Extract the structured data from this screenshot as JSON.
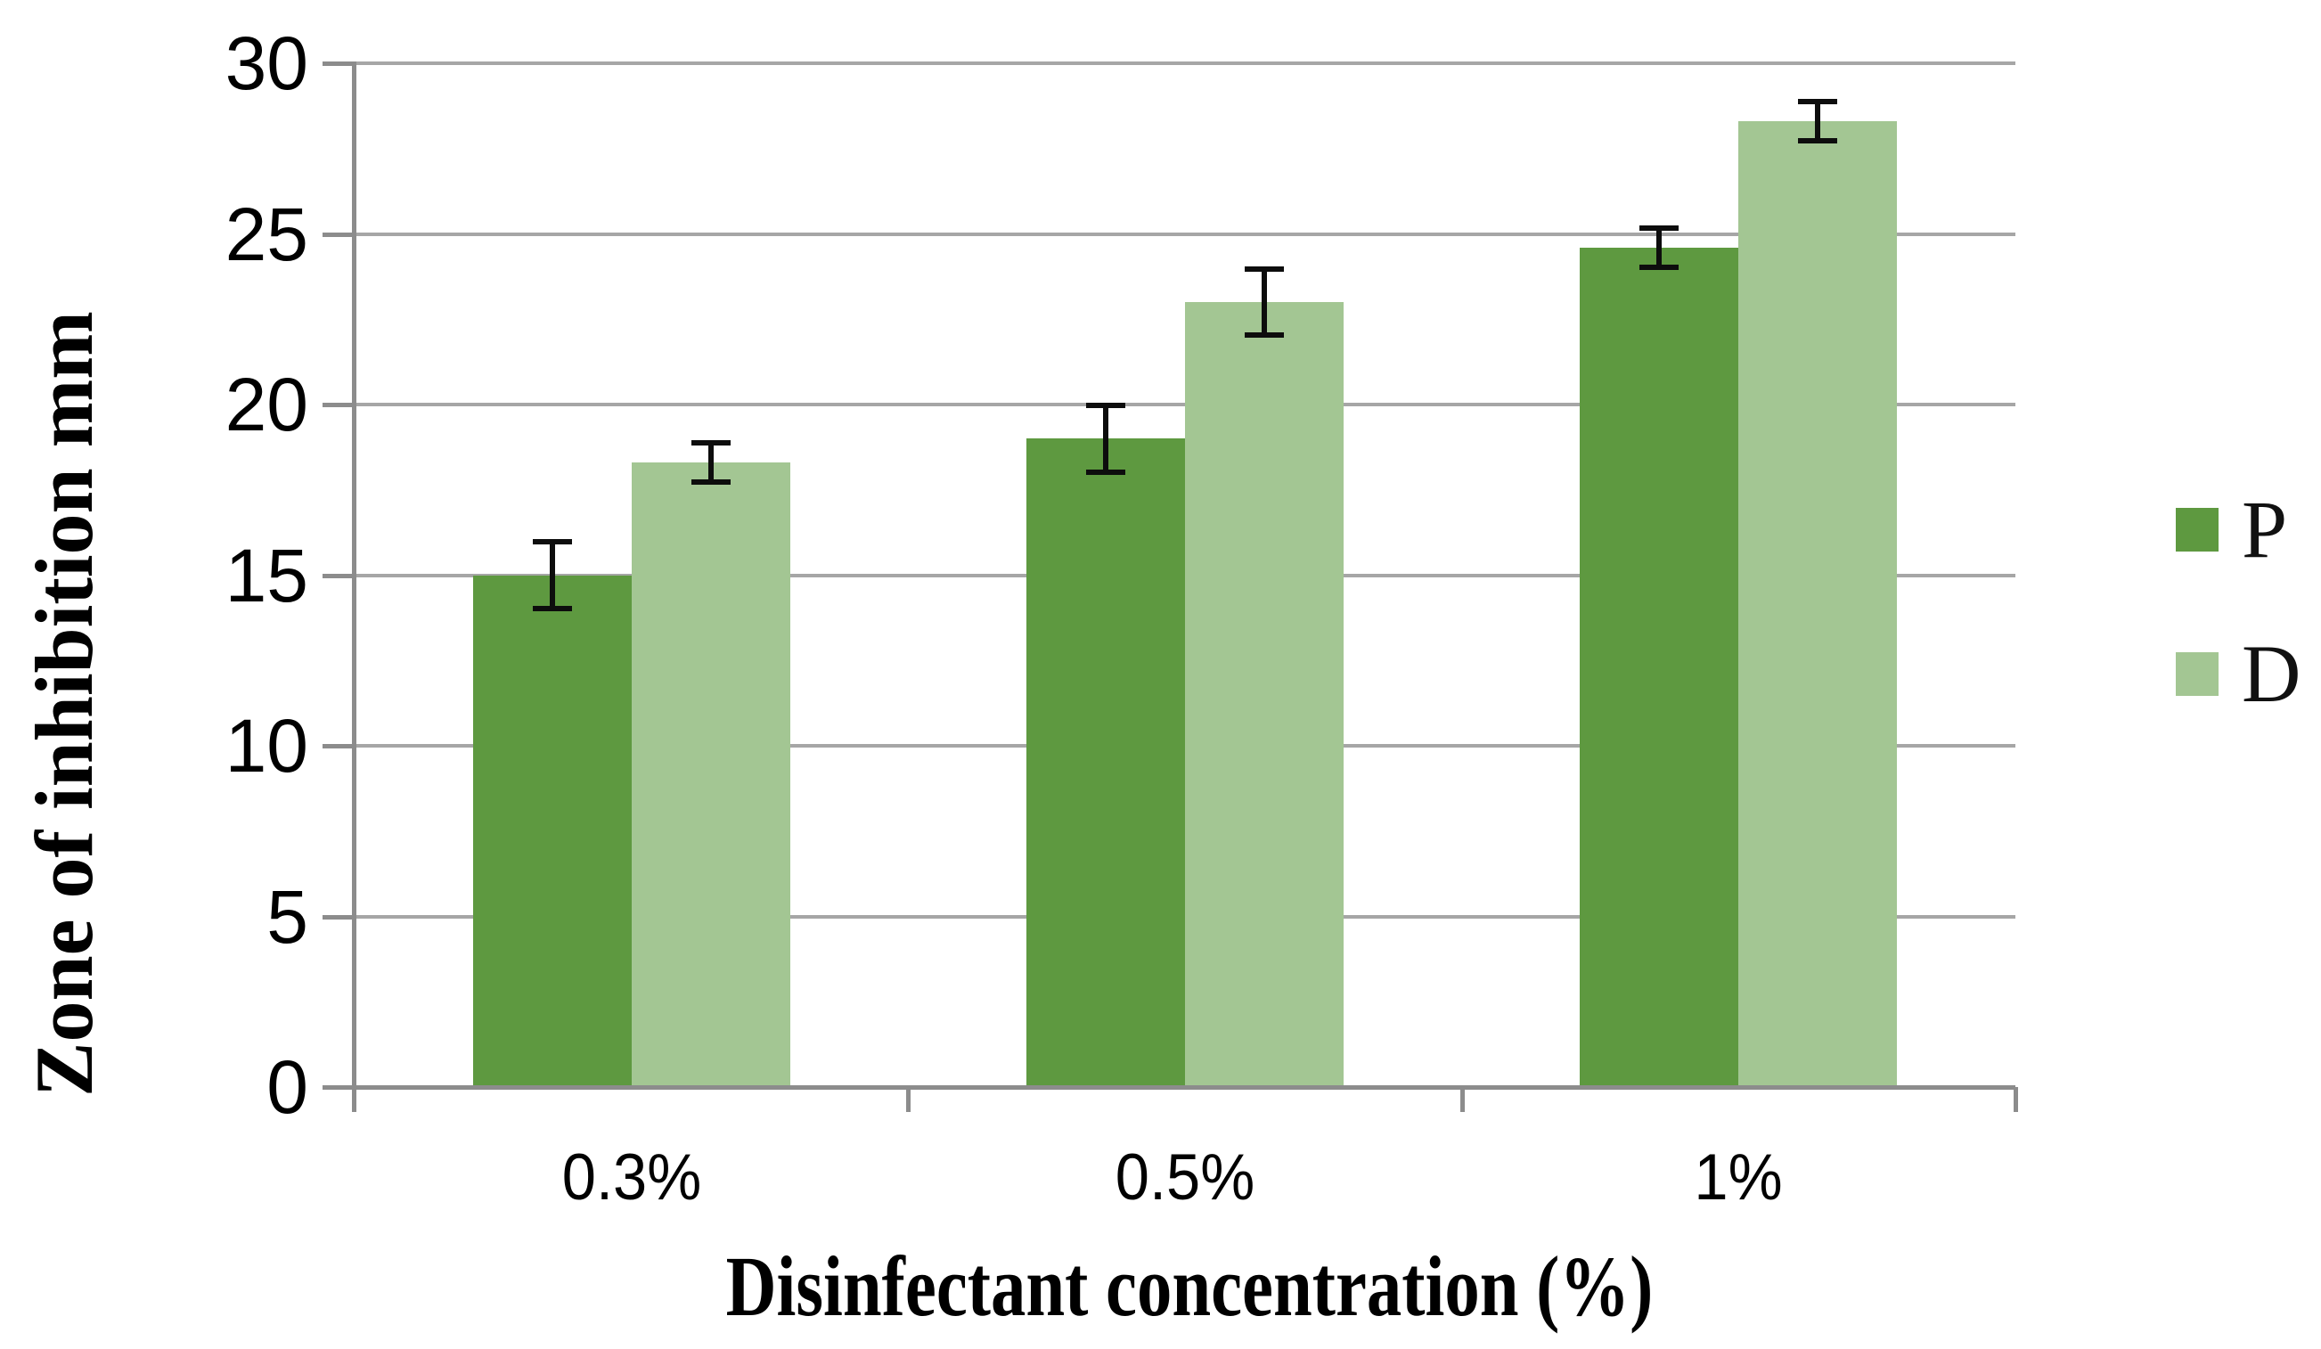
{
  "chart_data": {
    "type": "bar",
    "title": "",
    "categories": [
      "0.3%",
      "0.5%",
      "1%"
    ],
    "series": [
      {
        "name": "P",
        "color": "#5e9940",
        "values": [
          15.0,
          19.0,
          24.6
        ],
        "errors": [
          1.0,
          1.0,
          0.6
        ]
      },
      {
        "name": "D",
        "color": "#a3c693",
        "values": [
          18.3,
          23.0,
          28.3
        ],
        "errors": [
          0.6,
          1.0,
          0.6
        ]
      }
    ],
    "xlabel": "Disinfectant concentration (%)",
    "ylabel": "Zone of inhibition mm",
    "ylim": [
      0,
      30
    ],
    "ytick_step": 5,
    "yticks": [
      0,
      5,
      10,
      15,
      20,
      25,
      30
    ],
    "grid": true,
    "legend_position": "right",
    "colors": {
      "gridline": "#a6a6a6",
      "axis": "#8c8c8c",
      "error_bar": "#0d0d0d",
      "text": "#000000"
    }
  }
}
